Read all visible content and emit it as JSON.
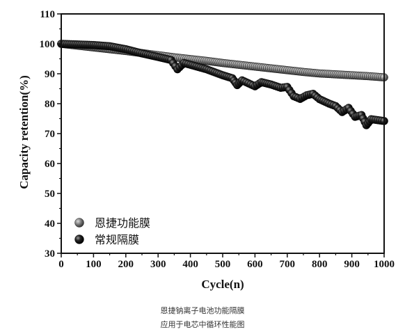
{
  "chart_data": {
    "type": "scatter",
    "xlabel": "Cycle(n)",
    "ylabel": "Capacity retention(%)",
    "xlim": [
      0,
      1000
    ],
    "ylim": [
      30,
      110
    ],
    "xticks": [
      "0",
      "100",
      "200",
      "300",
      "400",
      "500",
      "600",
      "700",
      "800",
      "900",
      "1000"
    ],
    "yticks": [
      "30",
      "40",
      "50",
      "60",
      "70",
      "80",
      "90",
      "100",
      "110"
    ],
    "legend_position": "bottom-left",
    "grid": false,
    "series": [
      {
        "name": "恩捷功能膜",
        "color": "#6e6e6e",
        "x": [
          0,
          50,
          100,
          150,
          200,
          250,
          300,
          350,
          400,
          450,
          500,
          550,
          600,
          650,
          700,
          750,
          800,
          850,
          900,
          950,
          1000
        ],
        "y": [
          100,
          99.4,
          98.8,
          98.2,
          97.6,
          96.9,
          96.2,
          95.5,
          94.9,
          94.3,
          93.6,
          93.0,
          92.4,
          91.8,
          91.2,
          90.6,
          90.1,
          89.8,
          89.5,
          89.2,
          88.8
        ]
      },
      {
        "name": "常规隔膜",
        "color": "#1a1a1a",
        "x": [
          0,
          50,
          100,
          150,
          200,
          250,
          300,
          340,
          360,
          380,
          400,
          450,
          500,
          530,
          545,
          560,
          580,
          600,
          620,
          650,
          680,
          700,
          720,
          740,
          760,
          780,
          800,
          830,
          850,
          870,
          890,
          910,
          930,
          945,
          960,
          980,
          1000
        ],
        "y": [
          100,
          99.8,
          99.6,
          99.2,
          98.2,
          96.8,
          95.6,
          94.6,
          91.5,
          93.6,
          93.0,
          91.5,
          89.5,
          88.5,
          86.2,
          87.8,
          86.8,
          85.8,
          87.2,
          86.4,
          85.3,
          85.6,
          82.5,
          81.6,
          82.8,
          83.3,
          81.5,
          80.0,
          79.2,
          77.2,
          78.6,
          75.6,
          76.2,
          72.8,
          74.8,
          74.5,
          74.2
        ]
      }
    ]
  },
  "caption": {
    "line1": "恩捷钠离子电池功能隔膜",
    "line2": "应用于电芯中循环性能图"
  }
}
